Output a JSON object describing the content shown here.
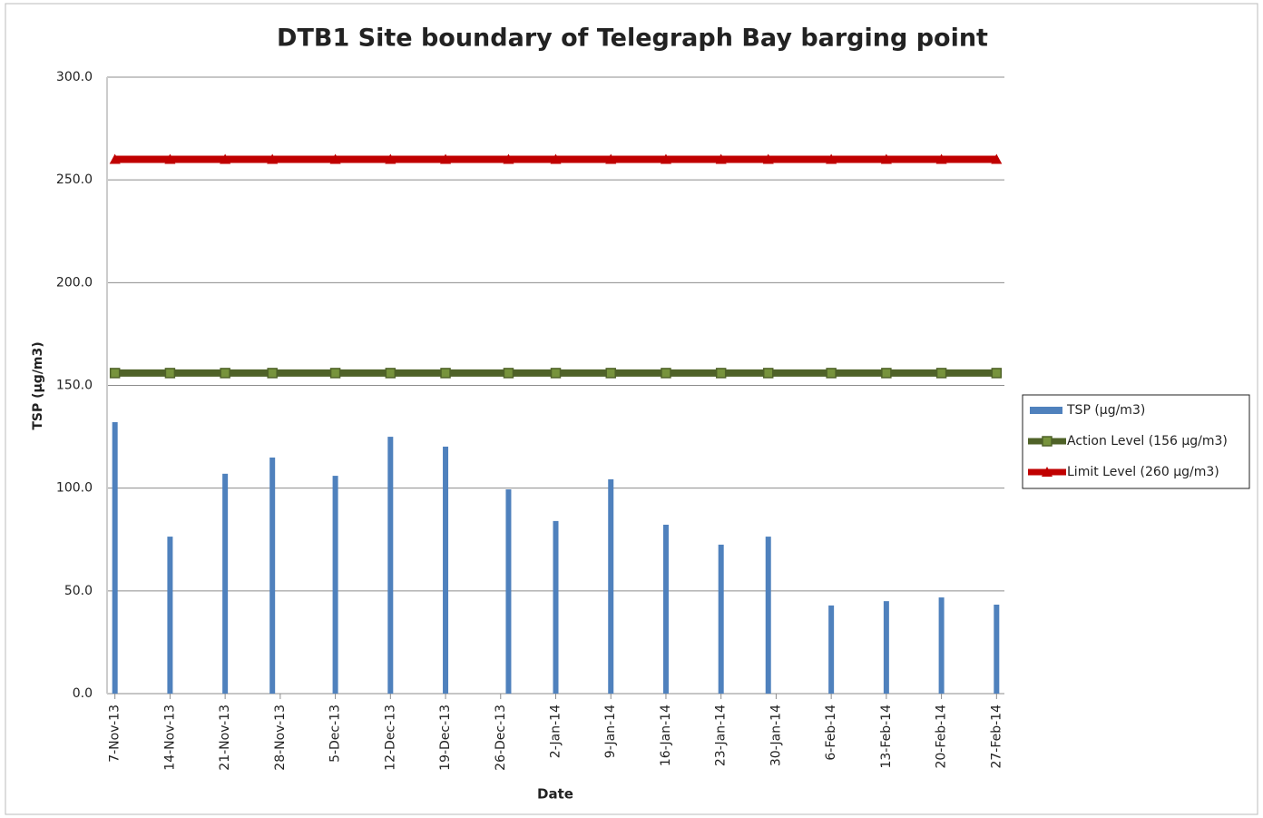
{
  "chart_data": {
    "type": "bar_line",
    "title": "DTB1   Site boundary of Telegraph Bay barging point",
    "x_label": "Date",
    "y_label": "TSP (µg/m3)",
    "x": [
      "2013-11-07",
      "2013-11-14",
      "2013-11-21",
      "2013-11-27",
      "2013-12-05",
      "2013-12-12",
      "2013-12-19",
      "2013-12-27",
      "2014-01-02",
      "2014-01-09",
      "2014-01-16",
      "2014-01-23",
      "2014-01-29",
      "2014-02-06",
      "2014-02-13",
      "2014-02-20",
      "2014-02-27"
    ],
    "series": [
      {
        "name": "TSP (µg/m3)",
        "type": "bar",
        "color": "#4f81bd",
        "values": [
          132.1,
          76.4,
          107,
          114.9,
          106,
          125,
          120.2,
          99.4,
          84,
          104.3,
          82.2,
          72.5,
          76.4,
          42.9,
          45,
          46.8,
          43.3
        ]
      },
      {
        "name": "Action Level (156 µg/m3)",
        "type": "line",
        "marker": "square",
        "color": "#4f6228",
        "values": [
          156,
          156,
          156,
          156,
          156,
          156,
          156,
          156,
          156,
          156,
          156,
          156,
          156,
          156,
          156,
          156,
          156
        ]
      },
      {
        "name": "Limit Level (260 µg/m3)",
        "type": "line",
        "marker": "triangle",
        "color": "#c00000",
        "values": [
          260,
          260,
          260,
          260,
          260,
          260,
          260,
          260,
          260,
          260,
          260,
          260,
          260,
          260,
          260,
          260,
          260
        ]
      }
    ],
    "xlim": [
      "2013-11-06",
      "2014-02-28"
    ],
    "xticks": [
      {
        "value": "2013-11-07",
        "label": "7-Nov-13"
      },
      {
        "value": "2013-11-14",
        "label": "14-Nov-13"
      },
      {
        "value": "2013-11-21",
        "label": "21-Nov-13"
      },
      {
        "value": "2013-11-28",
        "label": "28-Nov-13"
      },
      {
        "value": "2013-12-05",
        "label": "5-Dec-13"
      },
      {
        "value": "2013-12-12",
        "label": "12-Dec-13"
      },
      {
        "value": "2013-12-19",
        "label": "19-Dec-13"
      },
      {
        "value": "2013-12-26",
        "label": "26-Dec-13"
      },
      {
        "value": "2014-01-02",
        "label": "2-Jan-14"
      },
      {
        "value": "2014-01-09",
        "label": "9-Jan-14"
      },
      {
        "value": "2014-01-16",
        "label": "16-Jan-14"
      },
      {
        "value": "2014-01-23",
        "label": "23-Jan-14"
      },
      {
        "value": "2014-01-30",
        "label": "30-Jan-14"
      },
      {
        "value": "2014-02-06",
        "label": "6-Feb-14"
      },
      {
        "value": "2014-02-13",
        "label": "13-Feb-14"
      },
      {
        "value": "2014-02-20",
        "label": "20-Feb-14"
      },
      {
        "value": "2014-02-27",
        "label": "27-Feb-14"
      }
    ],
    "ylim": [
      0,
      300
    ],
    "yticks": [
      {
        "value": 0,
        "label": "0.0"
      },
      {
        "value": 50,
        "label": "50.0"
      },
      {
        "value": 100,
        "label": "100.0"
      },
      {
        "value": 150,
        "label": "150.0"
      },
      {
        "value": 200,
        "label": "200.0"
      },
      {
        "value": 250,
        "label": "250.0"
      },
      {
        "value": 300,
        "label": "300.0"
      }
    ],
    "grid": true,
    "legend": "right"
  }
}
